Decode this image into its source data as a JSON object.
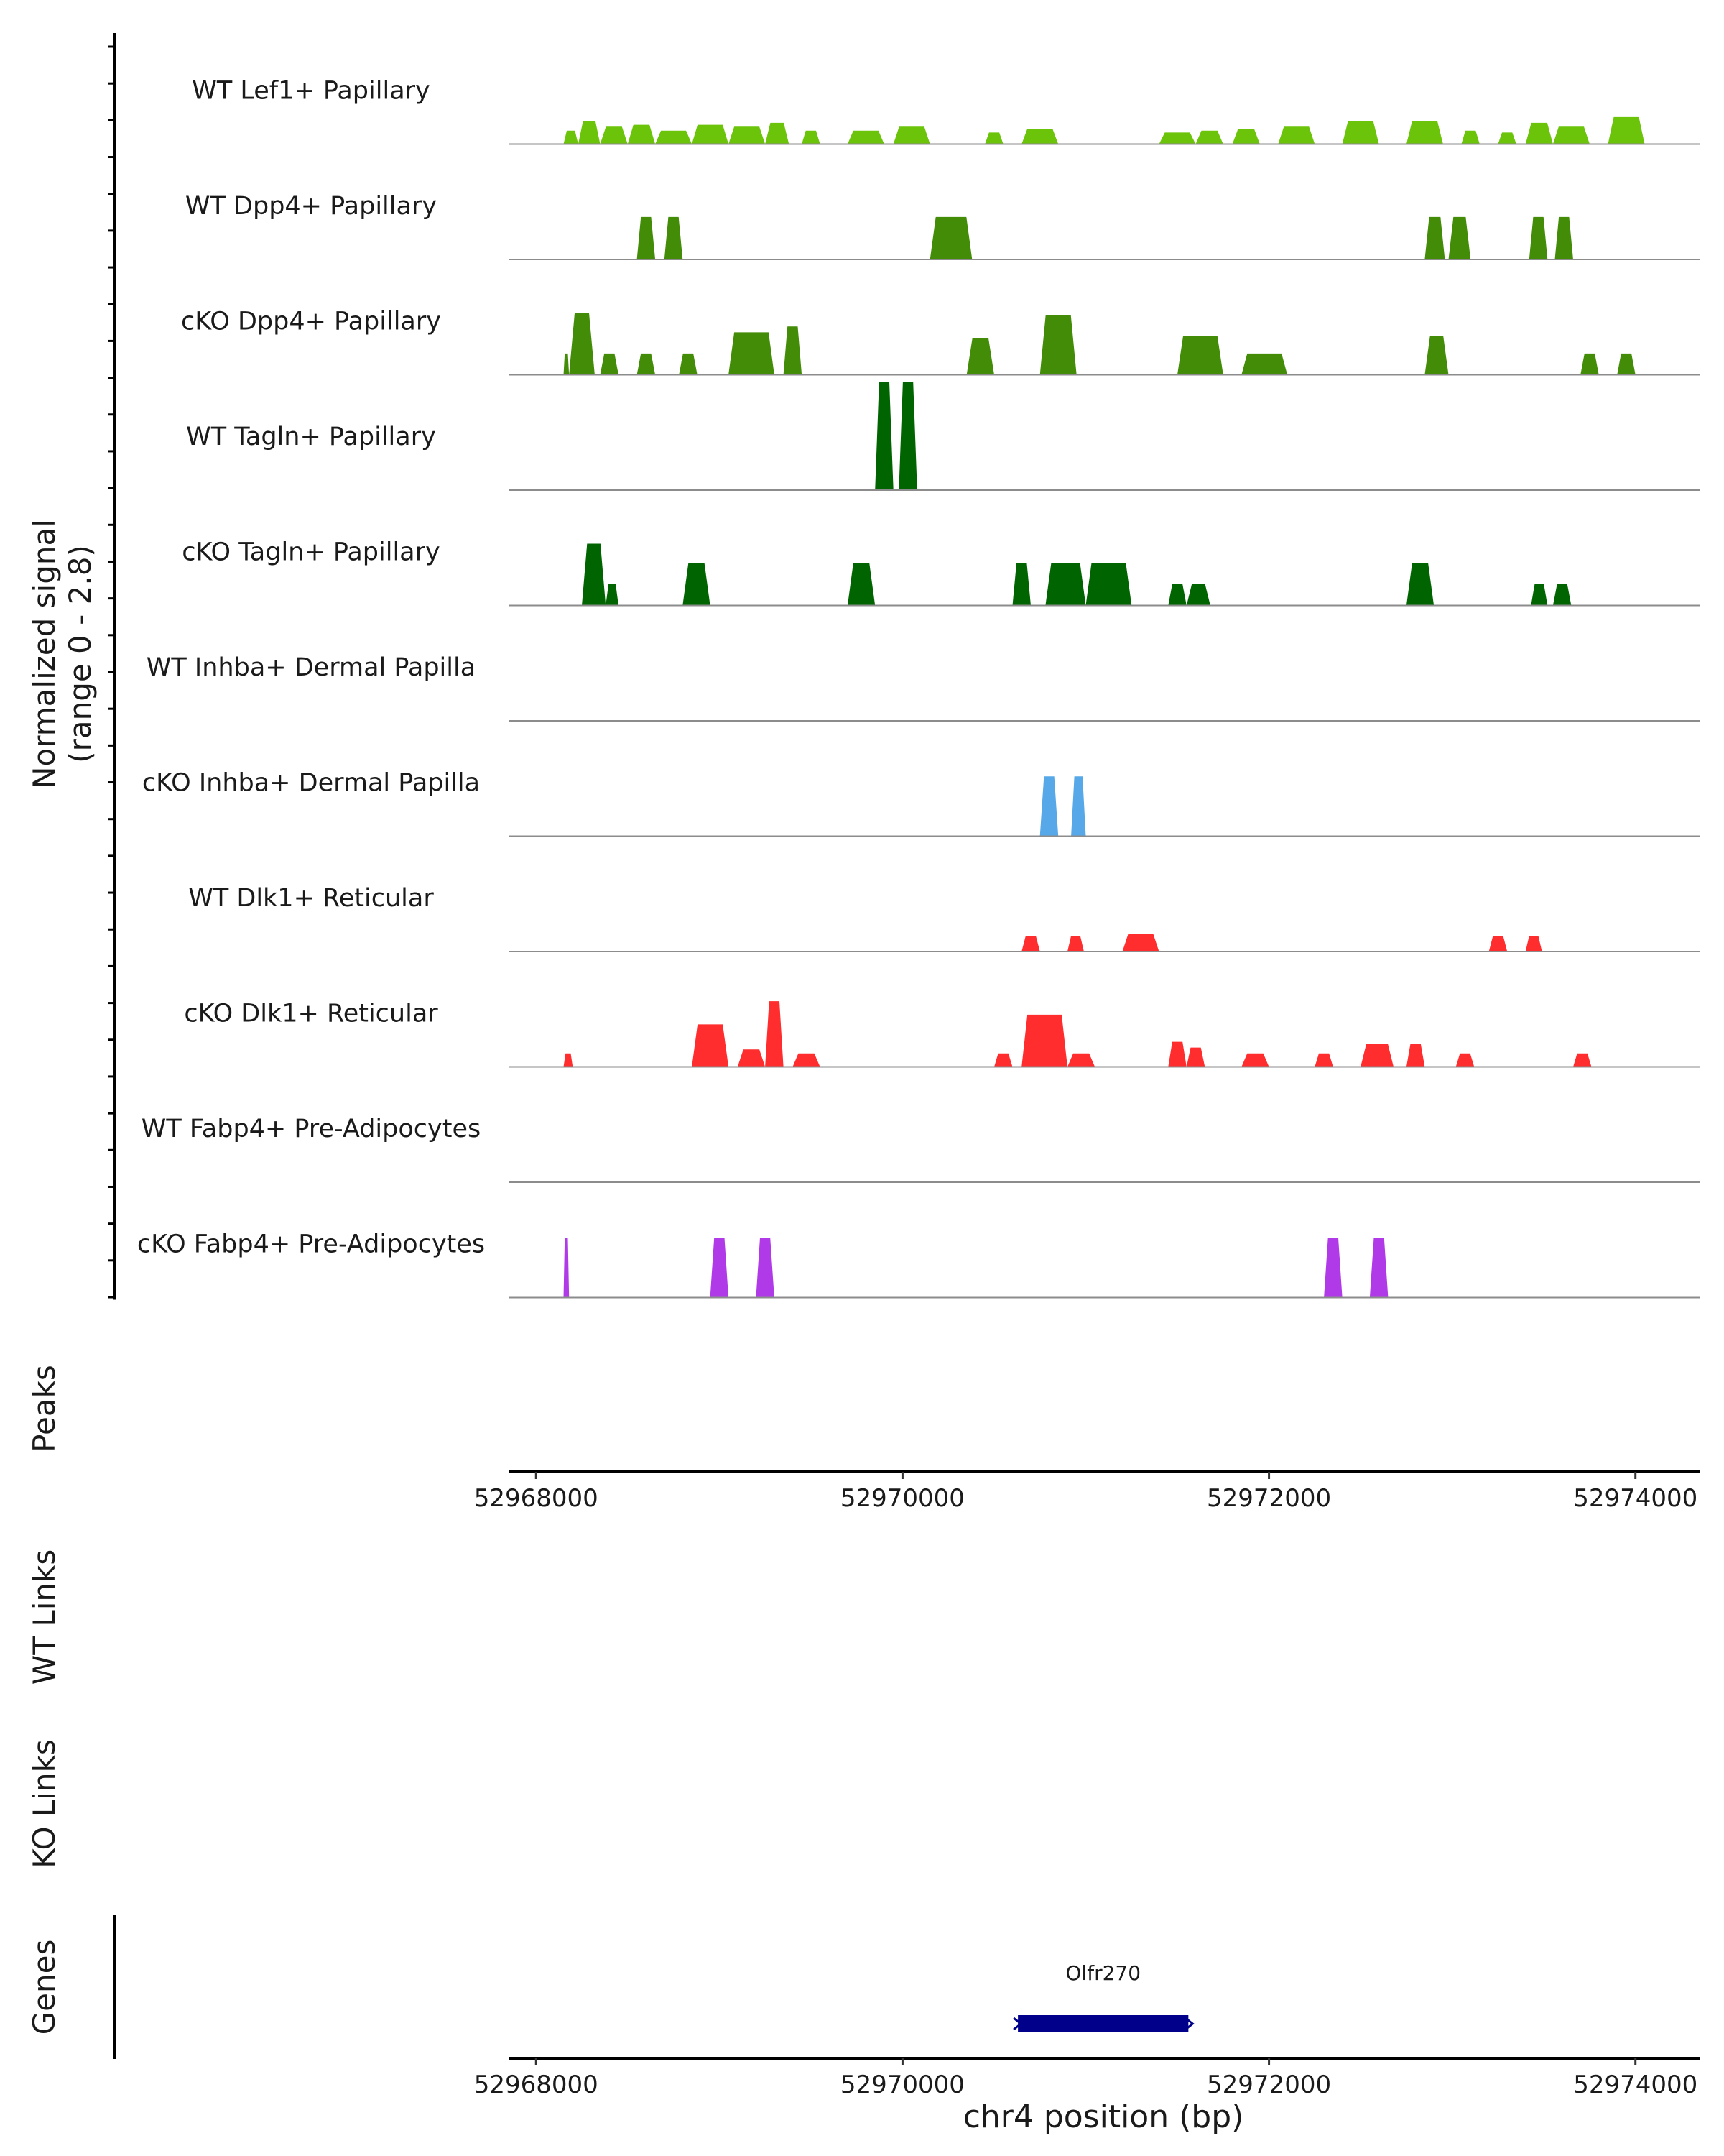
{
  "chart_data": {
    "type": "area",
    "title": "",
    "ylabel_line1": "Normalized signal",
    "ylabel_line2": "(range 0 - 2.8)",
    "ylim": [
      0,
      2.8
    ],
    "xlabel": "chr4 position (bp)",
    "xlim": [
      52967850,
      52974350
    ],
    "xticks": [
      52968000,
      52970000,
      52972000,
      52974000
    ],
    "xtick_labels": [
      "52968000",
      "52970000",
      "52972000",
      "52974000"
    ],
    "tracks": [
      {
        "name": "WT Lef1+ Papillary",
        "color": "#6cc40a",
        "peaks": [
          [
            52968150,
            52968230,
            0.35
          ],
          [
            52968230,
            52968350,
            0.6
          ],
          [
            52968350,
            52968500,
            0.45
          ],
          [
            52968500,
            52968650,
            0.5
          ],
          [
            52968650,
            52968850,
            0.35
          ],
          [
            52968850,
            52969050,
            0.5
          ],
          [
            52969050,
            52969250,
            0.45
          ],
          [
            52969250,
            52969380,
            0.55
          ],
          [
            52969450,
            52969550,
            0.35
          ],
          [
            52969700,
            52969900,
            0.35
          ],
          [
            52969950,
            52970150,
            0.45
          ],
          [
            52970450,
            52970550,
            0.3
          ],
          [
            52970650,
            52970850,
            0.4
          ],
          [
            52971400,
            52971600,
            0.3
          ],
          [
            52971600,
            52971750,
            0.35
          ],
          [
            52971800,
            52971950,
            0.4
          ],
          [
            52972050,
            52972250,
            0.45
          ],
          [
            52972400,
            52972600,
            0.6
          ],
          [
            52972750,
            52972950,
            0.6
          ],
          [
            52973050,
            52973150,
            0.35
          ],
          [
            52973250,
            52973350,
            0.3
          ],
          [
            52973400,
            52973550,
            0.55
          ],
          [
            52973550,
            52973750,
            0.45
          ],
          [
            52973850,
            52974050,
            0.7
          ]
        ]
      },
      {
        "name": "WT Dpp4+ Papillary",
        "color": "#438c07",
        "peaks": [
          [
            52968550,
            52968650,
            1.1
          ],
          [
            52968700,
            52968800,
            1.1
          ],
          [
            52970150,
            52970380,
            1.1
          ],
          [
            52972850,
            52972960,
            1.1
          ],
          [
            52972980,
            52973100,
            1.1
          ],
          [
            52973420,
            52973520,
            1.1
          ],
          [
            52973560,
            52973660,
            1.1
          ]
        ]
      },
      {
        "name": "cKO Dpp4+ Papillary",
        "color": "#438c07",
        "peaks": [
          [
            52968150,
            52968180,
            0.55
          ],
          [
            52968180,
            52968320,
            1.6
          ],
          [
            52968350,
            52968450,
            0.55
          ],
          [
            52968550,
            52968650,
            0.55
          ],
          [
            52968780,
            52968880,
            0.55
          ],
          [
            52969050,
            52969300,
            1.1
          ],
          [
            52969350,
            52969450,
            1.25
          ],
          [
            52970350,
            52970500,
            0.95
          ],
          [
            52970750,
            52970950,
            1.55
          ],
          [
            52971500,
            52971750,
            1.0
          ],
          [
            52971850,
            52972100,
            0.55
          ],
          [
            52972850,
            52972980,
            1.0
          ],
          [
            52973700,
            52973800,
            0.55
          ],
          [
            52973900,
            52974000,
            0.55
          ]
        ]
      },
      {
        "name": "WT Tagln+ Papillary",
        "color": "#006400",
        "peaks": [
          [
            52969850,
            52969950,
            2.8
          ],
          [
            52969980,
            52970080,
            2.8
          ]
        ]
      },
      {
        "name": "cKO Tagln+ Papillary",
        "color": "#006400",
        "peaks": [
          [
            52968250,
            52968380,
            1.6
          ],
          [
            52968380,
            52968450,
            0.55
          ],
          [
            52968800,
            52968950,
            1.1
          ],
          [
            52969700,
            52969850,
            1.1
          ],
          [
            52970600,
            52970700,
            1.1
          ],
          [
            52970780,
            52971000,
            1.1
          ],
          [
            52971000,
            52971250,
            1.1
          ],
          [
            52971450,
            52971550,
            0.55
          ],
          [
            52971550,
            52971680,
            0.55
          ],
          [
            52972750,
            52972900,
            1.1
          ],
          [
            52973430,
            52973520,
            0.55
          ],
          [
            52973550,
            52973650,
            0.55
          ]
        ]
      },
      {
        "name": "WT Inhba+ Dermal Papilla",
        "color": "#56a8e8",
        "peaks": []
      },
      {
        "name": "cKO Inhba+ Dermal Papilla",
        "color": "#56a8e8",
        "peaks": [
          [
            52970750,
            52970850,
            1.55
          ],
          [
            52970920,
            52971000,
            1.55
          ]
        ]
      },
      {
        "name": "WT Dlk1+ Reticular",
        "color": "#ff2d2d",
        "peaks": [
          [
            52970650,
            52970750,
            0.4
          ],
          [
            52970900,
            52970990,
            0.4
          ],
          [
            52971200,
            52971400,
            0.45
          ],
          [
            52973200,
            52973300,
            0.4
          ],
          [
            52973400,
            52973490,
            0.4
          ]
        ]
      },
      {
        "name": "cKO Dlk1+ Reticular",
        "color": "#ff2d2d",
        "peaks": [
          [
            52968150,
            52968200,
            0.35
          ],
          [
            52968850,
            52969050,
            1.1
          ],
          [
            52969100,
            52969250,
            0.45
          ],
          [
            52969250,
            52969350,
            1.7
          ],
          [
            52969400,
            52969550,
            0.35
          ],
          [
            52970500,
            52970600,
            0.35
          ],
          [
            52970650,
            52970900,
            1.35
          ],
          [
            52970900,
            52971050,
            0.35
          ],
          [
            52971450,
            52971550,
            0.65
          ],
          [
            52971550,
            52971650,
            0.5
          ],
          [
            52971850,
            52972000,
            0.35
          ],
          [
            52972250,
            52972350,
            0.35
          ],
          [
            52972500,
            52972680,
            0.6
          ],
          [
            52972750,
            52972850,
            0.6
          ],
          [
            52973020,
            52973120,
            0.35
          ],
          [
            52973660,
            52973760,
            0.35
          ]
        ]
      },
      {
        "name": "WT Fabp4+ Pre-Adipocytes",
        "color": "#b03ae8",
        "peaks": []
      },
      {
        "name": "cKO Fabp4+ Pre-Adipocytes",
        "color": "#b03ae8",
        "peaks": [
          [
            52968150,
            52968180,
            1.55
          ],
          [
            52968950,
            52969050,
            1.55
          ],
          [
            52969200,
            52969300,
            1.55
          ],
          [
            52972300,
            52972400,
            1.55
          ],
          [
            52972550,
            52972650,
            1.55
          ]
        ]
      }
    ],
    "side_tracks": [
      "Peaks",
      "WT Links",
      "KO Links",
      "Genes"
    ],
    "genes": [
      {
        "name": "Olfr270",
        "start": 52970630,
        "end": 52971560,
        "strand": "-",
        "color": "#00008b"
      }
    ]
  }
}
